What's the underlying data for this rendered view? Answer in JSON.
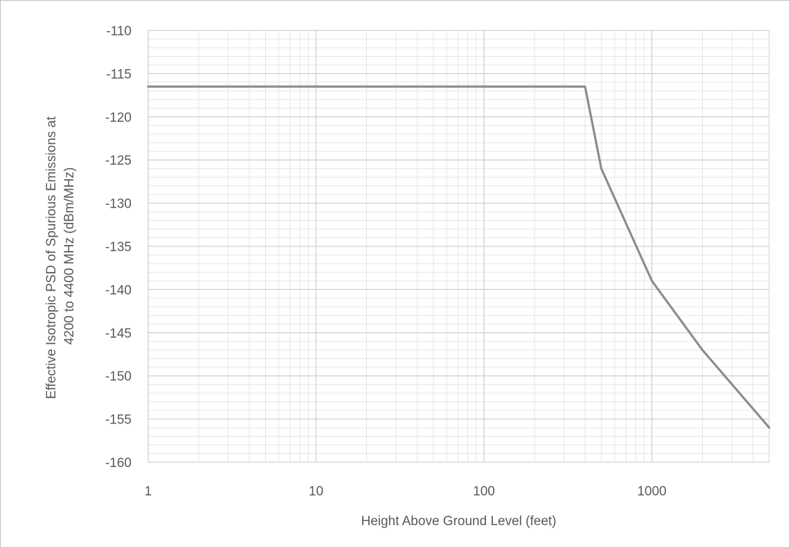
{
  "chart_data": {
    "type": "line",
    "title": "",
    "xlabel": "Height Above Ground Level (feet)",
    "ylabel_lines": [
      "Effective Isotropic PSD of Spurious Emissions at",
      "4200 to 4400 MHz (dBm/MHz)"
    ],
    "x_scale": "log",
    "xlim": [
      1,
      5000
    ],
    "ylim": [
      -160,
      -110
    ],
    "x_ticks": [
      1,
      10,
      100,
      1000
    ],
    "x_tick_labels": [
      "1",
      "10",
      "100",
      "1000"
    ],
    "y_ticks": [
      -110,
      -115,
      -120,
      -125,
      -130,
      -135,
      -140,
      -145,
      -150,
      -155,
      -160
    ],
    "y_tick_labels": [
      "-110",
      "-115",
      "-120",
      "-125",
      "-130",
      "-135",
      "-140",
      "-145",
      "-150",
      "-155",
      "-160"
    ],
    "grid": true,
    "minor_grid": true,
    "legend": "none",
    "series": [
      {
        "line_color": "#8c8c8c",
        "x": [
          1,
          400,
          500,
          1000,
          2000,
          5000
        ],
        "y": [
          -116.5,
          -116.5,
          -126,
          -139,
          -147,
          -156
        ]
      }
    ]
  },
  "colors": {
    "major_grid": "#d0d0d0",
    "minor_grid": "#e6e6e6",
    "frame": "#bfbfbf",
    "text": "#595959"
  }
}
